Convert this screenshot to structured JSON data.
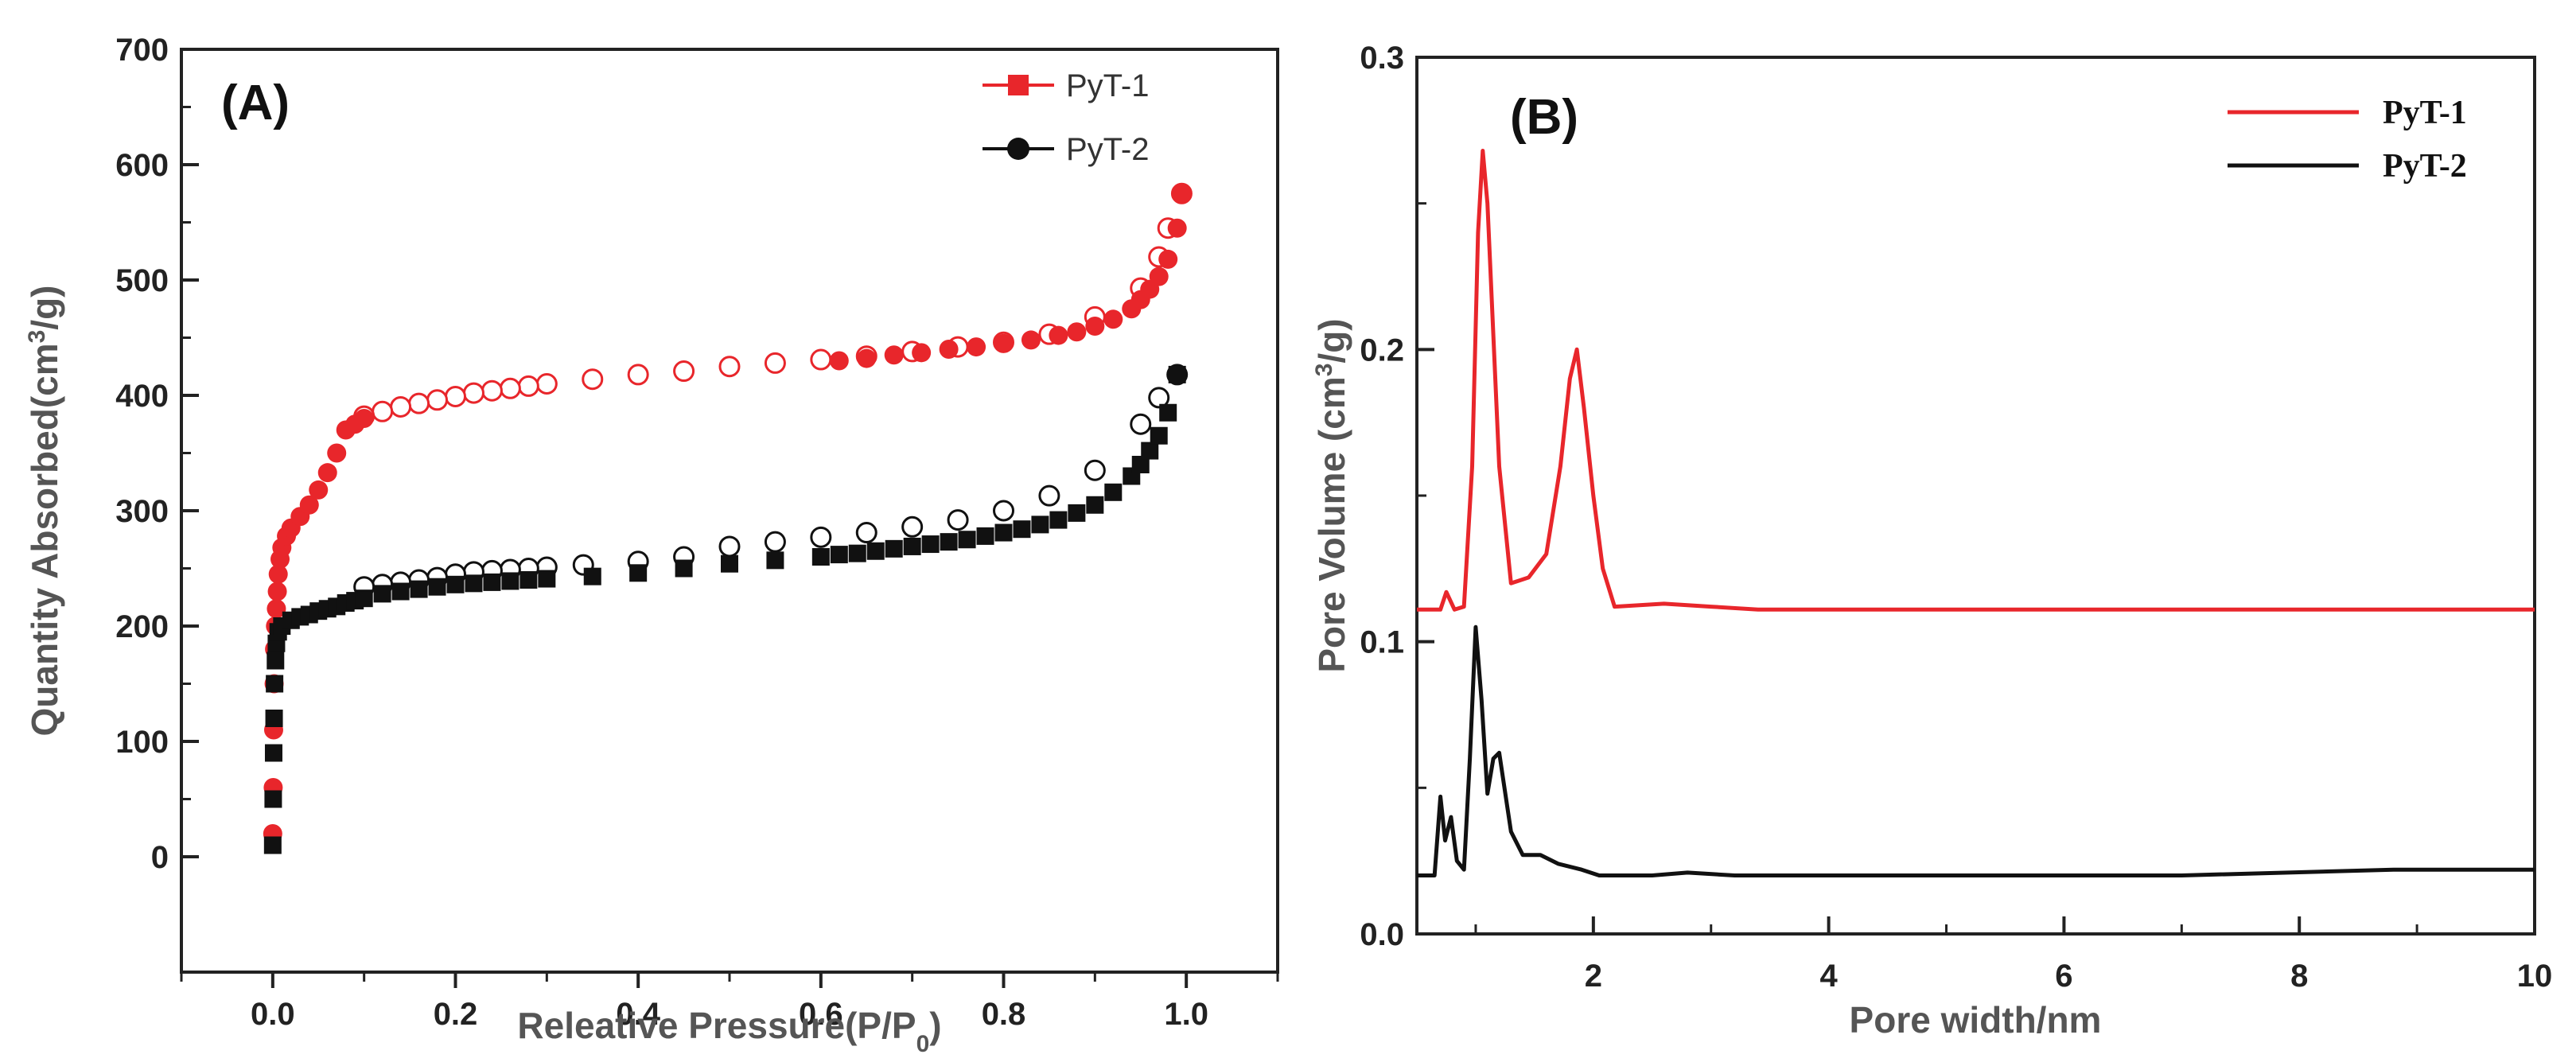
{
  "chart_data": [
    {
      "panel_label": "(A)",
      "type": "scatter",
      "xlabel": "Releative Pressure(P/P",
      "xlabel_sub": "0",
      "xlabel_end": ")",
      "ylabel": "Quantity Absorbed(cm",
      "ylabel_sup": "3",
      "ylabel_end": "/g)",
      "xlim": [
        -0.1,
        1.1
      ],
      "ylim": [
        -100,
        700
      ],
      "xticks": [
        0.0,
        0.2,
        0.4,
        0.6,
        0.8,
        1.0
      ],
      "xtick_labels": [
        "0.0",
        "0.2",
        "0.4",
        "0.6",
        "0.8",
        "1.0"
      ],
      "yticks": [
        0,
        100,
        200,
        300,
        400,
        500,
        600,
        700
      ],
      "ytick_labels": [
        "0",
        "100",
        "200",
        "300",
        "400",
        "500",
        "600",
        "700"
      ],
      "legend_position": "top-right",
      "series": [
        {
          "name": "PyT-1",
          "color": "#e8262b",
          "legend_marker": "square",
          "adsorption_marker": "filled-circle",
          "desorption_marker": "open-circle",
          "adsorption": [
            [
              0.0,
              20
            ],
            [
              0.0005,
              60
            ],
            [
              0.001,
              110
            ],
            [
              0.0015,
              150
            ],
            [
              0.002,
              180
            ],
            [
              0.003,
              200
            ],
            [
              0.004,
              215
            ],
            [
              0.005,
              230
            ],
            [
              0.006,
              245
            ],
            [
              0.008,
              258
            ],
            [
              0.01,
              268
            ],
            [
              0.015,
              278
            ],
            [
              0.02,
              285
            ],
            [
              0.03,
              295
            ],
            [
              0.04,
              305
            ],
            [
              0.05,
              318
            ],
            [
              0.06,
              333
            ],
            [
              0.07,
              350
            ],
            [
              0.08,
              370
            ],
            [
              0.09,
              375
            ],
            [
              0.1,
              380
            ],
            [
              0.62,
              430
            ],
            [
              0.65,
              432
            ],
            [
              0.68,
              435
            ],
            [
              0.71,
              437
            ],
            [
              0.74,
              440
            ],
            [
              0.77,
              442
            ],
            [
              0.8,
              445
            ],
            [
              0.83,
              448
            ],
            [
              0.86,
              452
            ],
            [
              0.88,
              455
            ],
            [
              0.9,
              460
            ],
            [
              0.92,
              466
            ],
            [
              0.94,
              475
            ],
            [
              0.95,
              483
            ],
            [
              0.96,
              492
            ],
            [
              0.97,
              503
            ],
            [
              0.98,
              518
            ],
            [
              0.99,
              545
            ],
            [
              0.995,
              575
            ]
          ],
          "desorption": [
            [
              0.995,
              575
            ],
            [
              0.98,
              545
            ],
            [
              0.97,
              520
            ],
            [
              0.95,
              493
            ],
            [
              0.9,
              468
            ],
            [
              0.85,
              453
            ],
            [
              0.8,
              446
            ],
            [
              0.75,
              442
            ],
            [
              0.7,
              438
            ],
            [
              0.65,
              434
            ],
            [
              0.6,
              431
            ],
            [
              0.55,
              428
            ],
            [
              0.5,
              425
            ],
            [
              0.45,
              421
            ],
            [
              0.4,
              418
            ],
            [
              0.35,
              414
            ],
            [
              0.3,
              410
            ],
            [
              0.28,
              408
            ],
            [
              0.26,
              406
            ],
            [
              0.24,
              404
            ],
            [
              0.22,
              402
            ],
            [
              0.2,
              399
            ],
            [
              0.18,
              396
            ],
            [
              0.16,
              393
            ],
            [
              0.14,
              390
            ],
            [
              0.12,
              386
            ],
            [
              0.1,
              382
            ]
          ]
        },
        {
          "name": "PyT-2",
          "color": "#111111",
          "legend_marker": "circle",
          "adsorption_marker": "filled-square",
          "desorption_marker": "open-circle",
          "adsorption": [
            [
              0.0,
              10
            ],
            [
              0.0005,
              50
            ],
            [
              0.001,
              90
            ],
            [
              0.0015,
              120
            ],
            [
              0.002,
              150
            ],
            [
              0.003,
              170
            ],
            [
              0.004,
              185
            ],
            [
              0.006,
              195
            ],
            [
              0.01,
              200
            ],
            [
              0.02,
              205
            ],
            [
              0.03,
              208
            ],
            [
              0.04,
              210
            ],
            [
              0.05,
              213
            ],
            [
              0.06,
              215
            ],
            [
              0.07,
              217
            ],
            [
              0.08,
              220
            ],
            [
              0.09,
              222
            ],
            [
              0.1,
              224
            ],
            [
              0.12,
              228
            ],
            [
              0.14,
              230
            ],
            [
              0.16,
              232
            ],
            [
              0.18,
              234
            ],
            [
              0.2,
              236
            ],
            [
              0.22,
              237
            ],
            [
              0.24,
              238
            ],
            [
              0.26,
              239
            ],
            [
              0.28,
              240
            ],
            [
              0.3,
              241
            ],
            [
              0.35,
              243
            ],
            [
              0.4,
              246
            ],
            [
              0.45,
              250
            ],
            [
              0.5,
              254
            ],
            [
              0.55,
              257
            ],
            [
              0.6,
              260
            ],
            [
              0.62,
              262
            ],
            [
              0.64,
              263
            ],
            [
              0.66,
              265
            ],
            [
              0.68,
              267
            ],
            [
              0.7,
              269
            ],
            [
              0.72,
              271
            ],
            [
              0.74,
              273
            ],
            [
              0.76,
              275
            ],
            [
              0.78,
              278
            ],
            [
              0.8,
              281
            ],
            [
              0.82,
              284
            ],
            [
              0.84,
              288
            ],
            [
              0.86,
              292
            ],
            [
              0.88,
              298
            ],
            [
              0.9,
              305
            ],
            [
              0.92,
              316
            ],
            [
              0.94,
              330
            ],
            [
              0.95,
              340
            ],
            [
              0.96,
              352
            ],
            [
              0.97,
              365
            ],
            [
              0.98,
              385
            ],
            [
              0.99,
              418
            ]
          ],
          "desorption": [
            [
              0.99,
              418
            ],
            [
              0.97,
              398
            ],
            [
              0.95,
              375
            ],
            [
              0.9,
              335
            ],
            [
              0.85,
              313
            ],
            [
              0.8,
              300
            ],
            [
              0.75,
              292
            ],
            [
              0.7,
              286
            ],
            [
              0.65,
              281
            ],
            [
              0.6,
              277
            ],
            [
              0.55,
              273
            ],
            [
              0.5,
              269
            ],
            [
              0.45,
              260
            ],
            [
              0.4,
              256
            ],
            [
              0.34,
              253
            ],
            [
              0.3,
              251
            ],
            [
              0.28,
              250
            ],
            [
              0.26,
              249
            ],
            [
              0.24,
              248
            ],
            [
              0.22,
              247
            ],
            [
              0.2,
              245
            ],
            [
              0.18,
              242
            ],
            [
              0.16,
              240
            ],
            [
              0.14,
              238
            ],
            [
              0.12,
              236
            ],
            [
              0.1,
              234
            ]
          ]
        }
      ]
    },
    {
      "panel_label": "(B)",
      "type": "line",
      "xlabel": "Pore width/nm",
      "ylabel": "Pore Volume (cm",
      "ylabel_sup": "3",
      "ylabel_end": "/g)",
      "xlim": [
        0.5,
        10
      ],
      "ylim": [
        0,
        0.3
      ],
      "xticks": [
        2,
        4,
        6,
        8,
        10
      ],
      "xtick_labels": [
        "2",
        "4",
        "6",
        "8",
        "10"
      ],
      "yticks": [
        0.0,
        0.1,
        0.2,
        0.3
      ],
      "ytick_labels": [
        "0.0",
        "0.1",
        "0.2",
        "0.3"
      ],
      "legend_position": "top-right",
      "series": [
        {
          "name": "PyT-1",
          "color": "#e8262b",
          "points": [
            [
              0.5,
              0.111
            ],
            [
              0.7,
              0.111
            ],
            [
              0.75,
              0.117
            ],
            [
              0.82,
              0.111
            ],
            [
              0.9,
              0.112
            ],
            [
              0.97,
              0.16
            ],
            [
              1.02,
              0.24
            ],
            [
              1.06,
              0.268
            ],
            [
              1.1,
              0.25
            ],
            [
              1.2,
              0.16
            ],
            [
              1.3,
              0.12
            ],
            [
              1.45,
              0.122
            ],
            [
              1.6,
              0.13
            ],
            [
              1.72,
              0.16
            ],
            [
              1.8,
              0.19
            ],
            [
              1.86,
              0.2
            ],
            [
              1.92,
              0.18
            ],
            [
              2.0,
              0.15
            ],
            [
              2.08,
              0.125
            ],
            [
              2.18,
              0.112
            ],
            [
              2.6,
              0.113
            ],
            [
              3.0,
              0.112
            ],
            [
              3.4,
              0.111
            ],
            [
              5.0,
              0.111
            ],
            [
              7.0,
              0.111
            ],
            [
              10.0,
              0.111
            ]
          ]
        },
        {
          "name": "PyT-2",
          "color": "#111111",
          "points": [
            [
              0.5,
              0.02
            ],
            [
              0.65,
              0.02
            ],
            [
              0.7,
              0.047
            ],
            [
              0.74,
              0.032
            ],
            [
              0.79,
              0.04
            ],
            [
              0.84,
              0.025
            ],
            [
              0.9,
              0.022
            ],
            [
              0.95,
              0.06
            ],
            [
              1.0,
              0.105
            ],
            [
              1.05,
              0.08
            ],
            [
              1.1,
              0.048
            ],
            [
              1.15,
              0.06
            ],
            [
              1.2,
              0.062
            ],
            [
              1.3,
              0.035
            ],
            [
              1.4,
              0.027
            ],
            [
              1.55,
              0.027
            ],
            [
              1.7,
              0.024
            ],
            [
              1.9,
              0.022
            ],
            [
              2.05,
              0.02
            ],
            [
              2.5,
              0.02
            ],
            [
              2.8,
              0.021
            ],
            [
              3.2,
              0.02
            ],
            [
              5.0,
              0.02
            ],
            [
              7.0,
              0.02
            ],
            [
              8.8,
              0.022
            ],
            [
              10.0,
              0.022
            ]
          ]
        }
      ]
    }
  ]
}
